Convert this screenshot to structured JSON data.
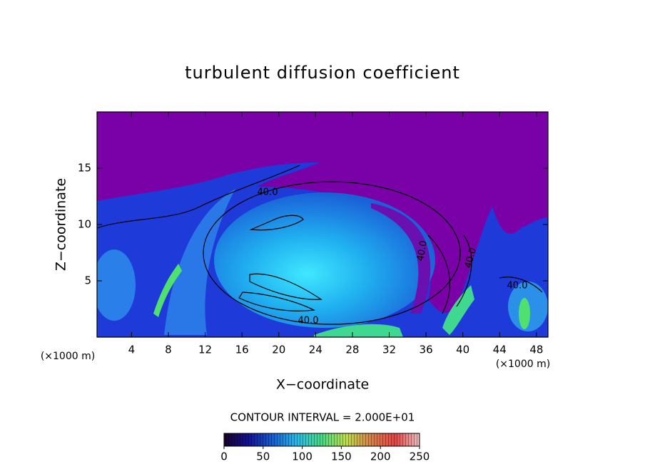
{
  "chart_data": {
    "type": "contour",
    "title": "turbulent diffusion coefficient",
    "xlabel": "X−coordinate",
    "ylabel": "Z−coordinate",
    "xunit": "(×1000 m)",
    "yunit": "(×1000 m)",
    "xlim": [
      0.25,
      49.25
    ],
    "ylim": [
      0,
      20
    ],
    "xticks": [
      4,
      8,
      12,
      16,
      20,
      24,
      28,
      32,
      36,
      40,
      44,
      48
    ],
    "yticks": [
      5,
      10,
      15
    ],
    "contour_interval_text": "CONTOUR INTERVAL = 2.000E+01",
    "contour_labels": [
      {
        "value": 40,
        "label": "40.0"
      },
      {
        "value": 40,
        "label": "40.0"
      },
      {
        "value": 40,
        "label": "40.0"
      },
      {
        "value": 40,
        "label": "40.0"
      },
      {
        "value": 40,
        "label": "40.0"
      }
    ],
    "colorbar": {
      "clim": [
        0,
        250
      ],
      "ticks": [
        0,
        50,
        100,
        150,
        200,
        250
      ],
      "colormap": [
        "#1a0030",
        "#1010a0",
        "#1060e0",
        "#20c0f0",
        "#40e080",
        "#c0e040",
        "#e08040",
        "#f04040",
        "#f0c0c0"
      ]
    }
  }
}
